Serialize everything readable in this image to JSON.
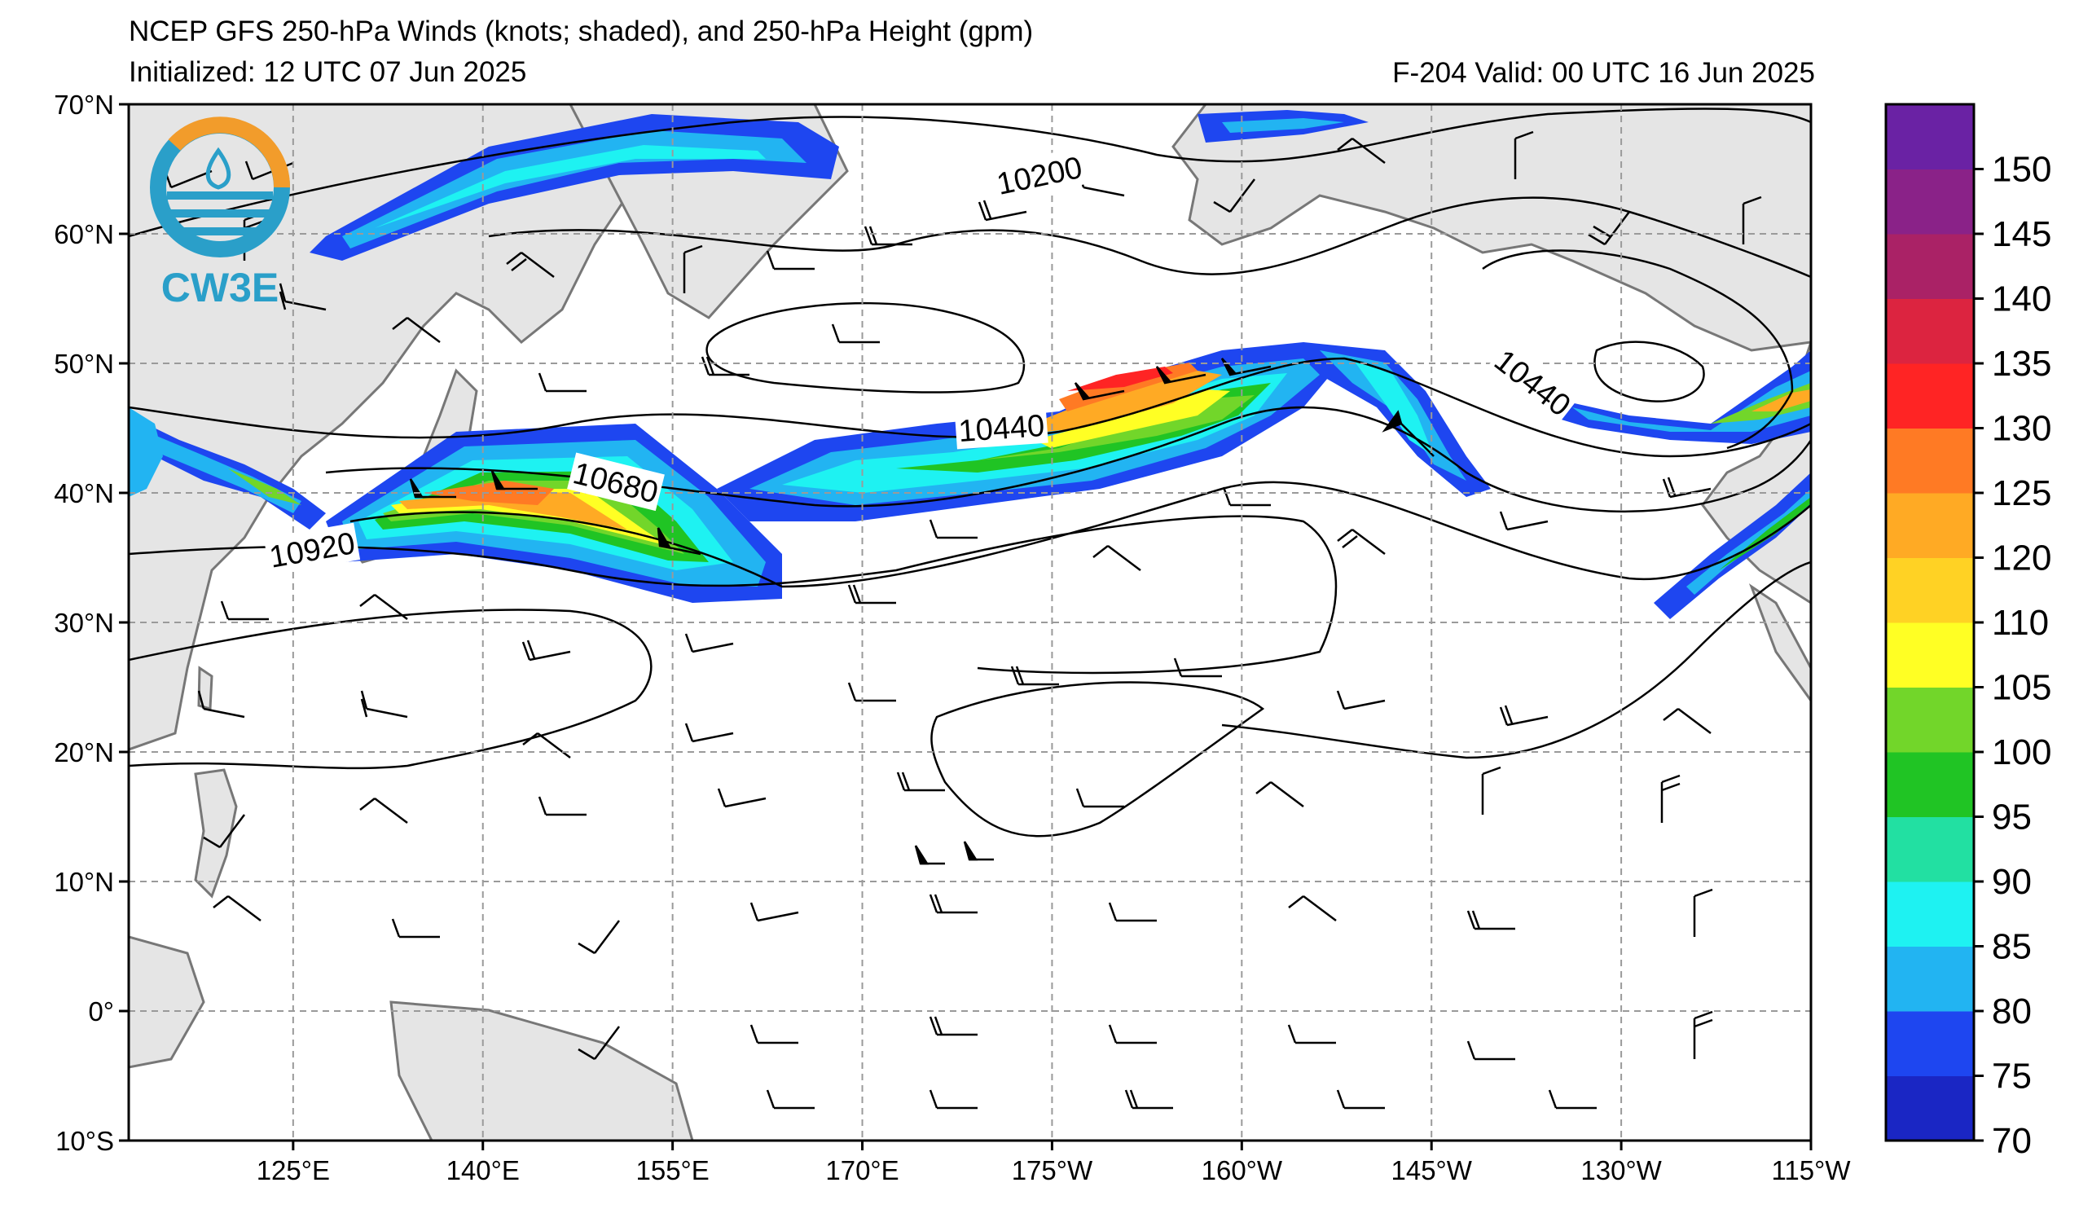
{
  "title": "NCEP GFS 250-hPa Winds (knots; shaded), and 250-hPa Height (gpm)",
  "init_line": "Initialized: 12 UTC 07 Jun 2025",
  "valid_line": "F-204  Valid: 00 UTC 16 Jun 2025",
  "logo": {
    "text": "CW3E",
    "ring_colors": [
      "#2a9fc9",
      "#f29c2b"
    ]
  },
  "colors": {
    "land": "#e5e5e5",
    "coast": "#777777",
    "grid": "#9a9a9a",
    "contour": "#000000"
  },
  "map": {
    "lat_range": [
      -10,
      70
    ],
    "lon_range": [
      112,
      245
    ],
    "lat_ticks": [
      "70°N",
      "60°N",
      "50°N",
      "40°N",
      "30°N",
      "20°N",
      "10°N",
      "0°",
      "10°S"
    ],
    "lat_values": [
      70,
      60,
      50,
      40,
      30,
      20,
      10,
      0,
      -10
    ],
    "lon_ticks": [
      "125°E",
      "140°E",
      "155°E",
      "170°E",
      "175°W",
      "160°W",
      "145°W",
      "130°W",
      "115°W"
    ],
    "lon_values": [
      125,
      140,
      155,
      170,
      185,
      200,
      215,
      230,
      245
    ]
  },
  "height_labels": [
    {
      "text": "10200",
      "lon": 184,
      "lat": 64.5,
      "rot": -12
    },
    {
      "text": "10440",
      "lon": 181,
      "lat": 45.0,
      "rot": -4
    },
    {
      "text": "10440",
      "lon": 223,
      "lat": 48.5,
      "rot": 38
    },
    {
      "text": "10680",
      "lon": 150.5,
      "lat": 40.8,
      "rot": 14
    },
    {
      "text": "10920",
      "lon": 126.5,
      "lat": 35.6,
      "rot": -10
    }
  ],
  "colorbar": {
    "levels": [
      70,
      75,
      80,
      85,
      90,
      95,
      100,
      105,
      110,
      120,
      125,
      130,
      135,
      140,
      145,
      150
    ],
    "colors": [
      "#1a26c4",
      "#1e46f0",
      "#22b4f2",
      "#1ef2f2",
      "#22e0a2",
      "#20c424",
      "#72d62a",
      "#ffff24",
      "#ffd224",
      "#ffaa24",
      "#ff7a24",
      "#ff2424",
      "#dc2440",
      "#aa2266",
      "#8a2288",
      "#6a22a4"
    ]
  }
}
